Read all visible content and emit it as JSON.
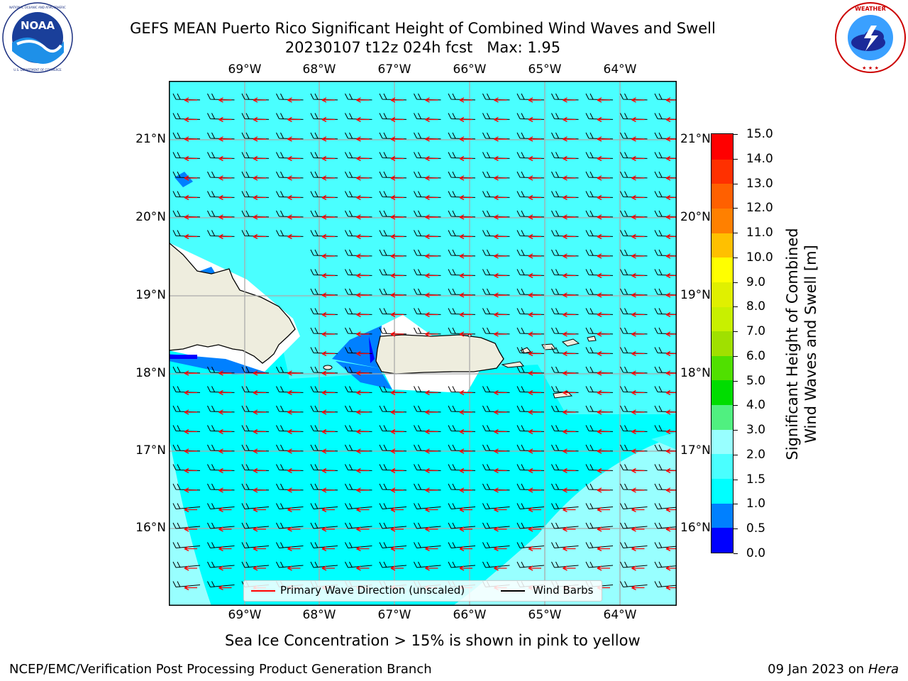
{
  "title": {
    "line1": "GEFS MEAN Puerto Rico Significant Height of Combined Wind Waves and Swell",
    "line2": "20230107 t12z 024h fcst   Max: 1.95"
  },
  "logos": {
    "left": {
      "name": "NOAA",
      "text": "NOAA",
      "ring_text": "NATIONAL OCEANIC AND ATMOSPHERIC ADMINISTRATION · U.S. DEPARTMENT OF COMMERCE"
    },
    "right": {
      "name": "National Weather Service",
      "ring_text": "NATIONAL WEATHER SERVICE"
    }
  },
  "map": {
    "lon_labels": [
      "69°W",
      "68°W",
      "67°W",
      "66°W",
      "65°W",
      "64°W"
    ],
    "lat_labels": [
      "21°N",
      "20°N",
      "19°N",
      "18°N",
      "17°N",
      "16°N"
    ],
    "colors": {
      "ocean_1_0_to_1_5": "#00ffff",
      "ocean_1_5_to_2_0": "#4affff",
      "ocean_2_0_to_3_0": "#98ffff",
      "ocean_0_5_to_1_0": "#0080ff",
      "land": "#eeedde",
      "no_data": "#ffffff",
      "wave_direction": "#ff0000",
      "wind_barb": "#000000"
    }
  },
  "legend": {
    "wave_label": "Primary Wave Direction (unscaled)",
    "barb_label": "Wind Barbs"
  },
  "colorbar": {
    "title_line1": "Significant Height of Combined",
    "title_line2": "Wind Waves and Swell [m]",
    "ticks": [
      "0.0",
      "0.5",
      "1.0",
      "1.5",
      "2.0",
      "3.0",
      "4.0",
      "5.0",
      "6.0",
      "7.0",
      "8.0",
      "9.0",
      "10.0",
      "11.0",
      "12.0",
      "13.0",
      "14.0",
      "15.0"
    ],
    "colors": [
      "#0000ff",
      "#0080ff",
      "#00ffff",
      "#4affff",
      "#98ffff",
      "#50f080",
      "#00dd00",
      "#50e000",
      "#a0e000",
      "#c8f000",
      "#e0f000",
      "#ffff00",
      "#ffc000",
      "#ff8000",
      "#ff6000",
      "#ff3000",
      "#ff0000"
    ]
  },
  "note": "Sea Ice Concentration > 15% is shown in pink to yellow",
  "footer": {
    "left": "NCEP/EMC/Verification Post Processing Product Generation Branch",
    "right_date": "09 Jan 2023 on ",
    "right_host": "Hera"
  }
}
